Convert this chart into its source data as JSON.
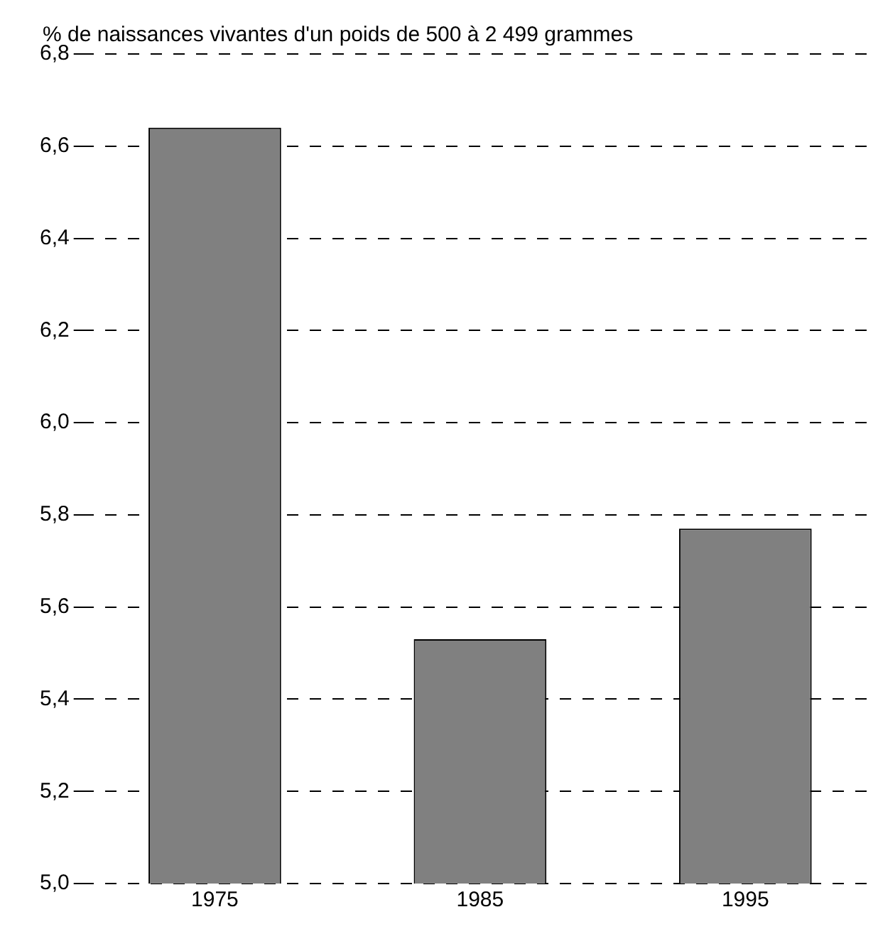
{
  "chart_data": {
    "type": "bar",
    "ylabel": "%  de naissances vivantes d'un poids de 500 à 2 499 grammes",
    "categories": [
      "1975",
      "1985",
      "1995"
    ],
    "values": [
      6.64,
      5.53,
      5.77
    ],
    "color": "#808080",
    "ylim": [
      5.0,
      6.8
    ],
    "yticks": [
      {
        "value": 5.0,
        "label": "5,0"
      },
      {
        "value": 5.2,
        "label": "5,2"
      },
      {
        "value": 5.4,
        "label": "5,4"
      },
      {
        "value": 5.6,
        "label": "5,6"
      },
      {
        "value": 5.8,
        "label": "5,8"
      },
      {
        "value": 6.0,
        "label": "6,0"
      },
      {
        "value": 6.2,
        "label": "6,2"
      },
      {
        "value": 6.4,
        "label": "6,4"
      },
      {
        "value": 6.6,
        "label": "6,6"
      },
      {
        "value": 6.8,
        "label": "6,8"
      }
    ],
    "grid": "y",
    "legend": false
  }
}
